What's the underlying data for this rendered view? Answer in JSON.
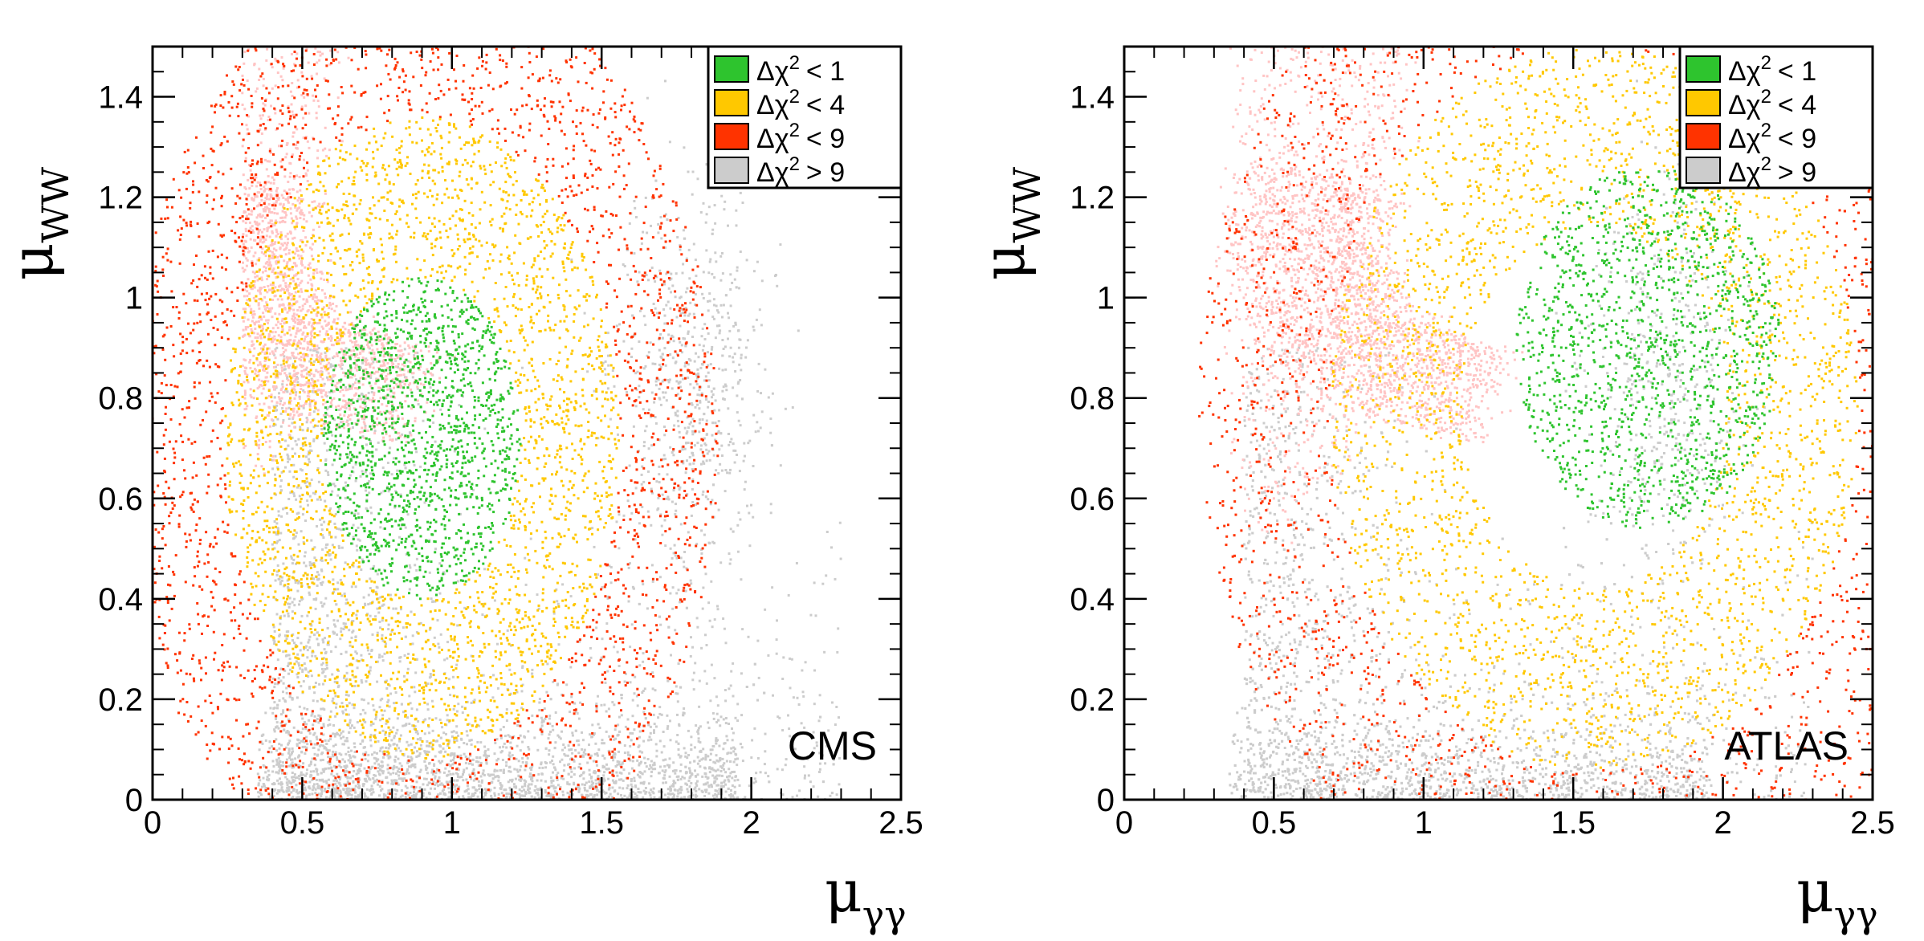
{
  "colors": {
    "delta1": "#2ec42e",
    "delta4": "#ffc800",
    "delta9": "#ff3300",
    "above9": "#cccccc",
    "excluded": "#ffc4c4"
  },
  "chart_data": [
    {
      "type": "scatter",
      "experiment": "CMS",
      "xlabel_main": "μ",
      "xlabel_sub": "γγ",
      "ylabel_main": "μ",
      "ylabel_sub": "WW",
      "xlim": [
        0,
        2.5
      ],
      "ylim": [
        0,
        1.5
      ],
      "xticks": [
        "0",
        "0.5",
        "1",
        "1.5",
        "2",
        "2.5"
      ],
      "yticks": [
        "0",
        "0.2",
        "0.4",
        "0.6",
        "0.8",
        "1",
        "1.2",
        "1.4"
      ],
      "legend": {
        "placement": "top-right",
        "entries": [
          {
            "label": "Δχ",
            "sup": "2",
            "op": "< 1",
            "color": "delta1"
          },
          {
            "label": "Δχ",
            "sup": "2",
            "op": "< 4",
            "color": "delta4"
          },
          {
            "label": "Δχ",
            "sup": "2",
            "op": "< 9",
            "color": "delta9"
          },
          {
            "label": "Δχ",
            "sup": "2",
            "op": "> 9",
            "color": "above9"
          }
        ]
      },
      "best_fit": [
        0.9,
        0.72
      ],
      "regions": [
        {
          "class": "delta1",
          "center": [
            0.9,
            0.72
          ],
          "r_max": 0.5,
          "density": 700
        },
        {
          "class": "delta4",
          "center": [
            0.9,
            0.72
          ],
          "r_min": 0.5,
          "r_max": 1.0,
          "density": 700
        },
        {
          "class": "delta9",
          "center": [
            0.9,
            0.72
          ],
          "r_min": 1.0,
          "r_max": 1.5,
          "density": 700
        }
      ]
    },
    {
      "type": "scatter",
      "experiment": "ATLAS",
      "xlabel_main": "μ",
      "xlabel_sub": "γγ",
      "ylabel_main": "μ",
      "ylabel_sub": "WW",
      "xlim": [
        0,
        2.5
      ],
      "ylim": [
        0,
        1.5
      ],
      "xticks": [
        "0",
        "0.5",
        "1",
        "1.5",
        "2",
        "2.5"
      ],
      "yticks": [
        "0",
        "0.2",
        "0.4",
        "0.6",
        "0.8",
        "1",
        "1.2",
        "1.4"
      ],
      "legend": {
        "placement": "top-right",
        "entries": [
          {
            "label": "Δχ",
            "sup": "2",
            "op": "< 1",
            "color": "delta1"
          },
          {
            "label": "Δχ",
            "sup": "2",
            "op": "< 4",
            "color": "delta4"
          },
          {
            "label": "Δχ",
            "sup": "2",
            "op": "< 9",
            "color": "delta9"
          },
          {
            "label": "Δχ",
            "sup": "2",
            "op": "> 9",
            "color": "above9"
          }
        ]
      },
      "best_fit": [
        1.75,
        0.9
      ],
      "regions": [
        {
          "class": "delta1",
          "center": [
            1.75,
            0.9
          ],
          "r_max": 0.5,
          "density": 800
        },
        {
          "class": "delta4",
          "center": [
            1.75,
            0.9
          ],
          "r_min": 0.5,
          "r_max": 1.0,
          "density": 800
        },
        {
          "class": "delta9",
          "center": [
            1.75,
            0.9
          ],
          "r_min": 1.0,
          "r_max": 1.5,
          "density": 800
        }
      ]
    }
  ]
}
